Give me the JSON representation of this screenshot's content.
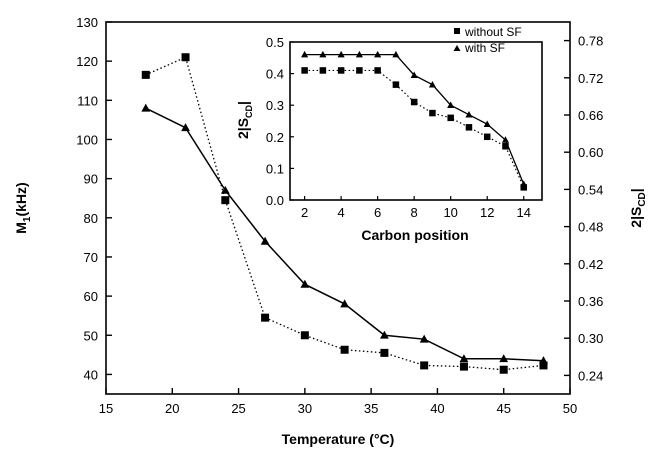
{
  "chart_data": [
    {
      "type": "line",
      "x_ticks": [
        "15",
        "20",
        "25",
        "30",
        "35",
        "40",
        "45",
        "50"
      ],
      "y_ticks": [
        "40",
        "50",
        "60",
        "70",
        "80",
        "90",
        "100",
        "110",
        "120",
        "130"
      ],
      "y2_ticks": [
        "0.24",
        "0.30",
        "0.36",
        "0.42",
        "0.48",
        "0.54",
        "0.60",
        "0.66",
        "0.72",
        "0.78"
      ],
      "xlim": [
        15,
        50
      ],
      "ylim": [
        35,
        130
      ],
      "xlabel": "Temperature (°C)",
      "ylabel_main": "M",
      "ylabel_sub": "1",
      "ylabel_unit": "(kHz)",
      "y2label_main": "2|S",
      "y2label_sub": "CD",
      "y2label_end": "|",
      "series": [
        {
          "marker": "triangle",
          "line": "solid",
          "x": [
            18,
            21,
            24,
            27,
            30,
            33,
            36,
            39,
            42,
            45,
            48
          ],
          "y": [
            108,
            103,
            87,
            74,
            63,
            58,
            50,
            49,
            44,
            44,
            43.5
          ]
        },
        {
          "marker": "square",
          "line": "dotted",
          "x": [
            18,
            21,
            24,
            27,
            30,
            33,
            36,
            39,
            42,
            45,
            48
          ],
          "y": [
            116.5,
            121,
            84.5,
            54.5,
            50,
            46.3,
            45.5,
            42.3,
            42,
            41.2,
            42.3
          ]
        }
      ]
    },
    {
      "type": "line",
      "x_ticks": [
        "2",
        "4",
        "6",
        "8",
        "10",
        "12",
        "14"
      ],
      "y_ticks": [
        "0.0",
        "0.1",
        "0.2",
        "0.3",
        "0.4",
        "0.5"
      ],
      "xlim": [
        1.2,
        15
      ],
      "ylim": [
        0,
        0.5
      ],
      "xlabel": "Carbon position",
      "ylabel_main": "2|S",
      "ylabel_sub": "CD",
      "ylabel_end": "|",
      "legend": "top-right",
      "series": [
        {
          "name": "without SF",
          "marker": "square",
          "line": "dotted",
          "x": [
            2,
            3,
            4,
            5,
            6,
            7,
            8,
            9,
            10,
            11,
            12,
            13,
            14
          ],
          "y": [
            0.41,
            0.41,
            0.41,
            0.41,
            0.41,
            0.365,
            0.31,
            0.275,
            0.26,
            0.23,
            0.2,
            0.17,
            0.04
          ]
        },
        {
          "name": "with SF",
          "marker": "triangle",
          "line": "solid",
          "x": [
            2,
            3,
            4,
            5,
            6,
            7,
            8,
            9,
            10,
            11,
            12,
            13,
            14
          ],
          "y": [
            0.46,
            0.46,
            0.46,
            0.46,
            0.46,
            0.46,
            0.395,
            0.365,
            0.3,
            0.27,
            0.24,
            0.19,
            0.05
          ]
        }
      ]
    }
  ]
}
